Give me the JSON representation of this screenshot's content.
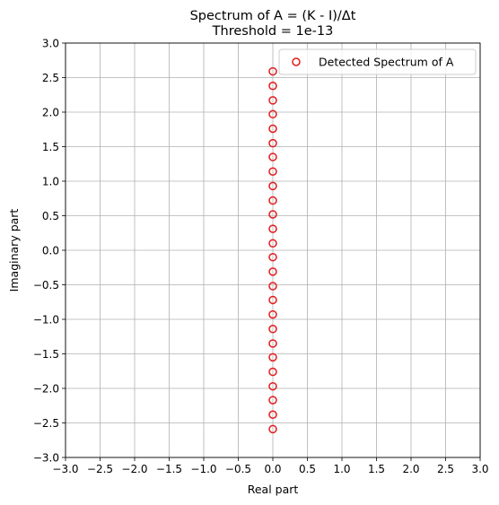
{
  "chart_data": {
    "type": "scatter",
    "title": "Spectrum of A = (K - I)/Δt",
    "subtitle": "Threshold = 1e-13",
    "xlabel": "Real part",
    "ylabel": "Imaginary part",
    "xlim": [
      -3.0,
      3.0
    ],
    "ylim": [
      -3.0,
      3.0
    ],
    "xticks": [
      "−3.0",
      "−2.5",
      "−2.0",
      "−1.5",
      "−1.0",
      "−0.5",
      "0.0",
      "0.5",
      "1.0",
      "1.5",
      "2.0",
      "2.5",
      "3.0"
    ],
    "yticks": [
      "−3.0",
      "−2.5",
      "−2.0",
      "−1.5",
      "−1.0",
      "−0.5",
      "0.0",
      "0.5",
      "1.0",
      "1.5",
      "2.0",
      "2.5",
      "3.0"
    ],
    "grid": true,
    "legend_position": "top-right",
    "series": [
      {
        "name": "Detected Spectrum of A",
        "color": "#e31a1c",
        "marker": "open-circle",
        "points": [
          {
            "x": 0.0,
            "y": 2.59
          },
          {
            "x": 0.0,
            "y": 2.38
          },
          {
            "x": 0.0,
            "y": 2.17
          },
          {
            "x": 0.0,
            "y": 1.97
          },
          {
            "x": 0.0,
            "y": 1.76
          },
          {
            "x": 0.0,
            "y": 1.55
          },
          {
            "x": 0.0,
            "y": 1.35
          },
          {
            "x": 0.0,
            "y": 1.14
          },
          {
            "x": 0.0,
            "y": 0.93
          },
          {
            "x": 0.0,
            "y": 0.72
          },
          {
            "x": 0.0,
            "y": 0.52
          },
          {
            "x": 0.0,
            "y": 0.31
          },
          {
            "x": 0.0,
            "y": 0.1
          },
          {
            "x": 0.0,
            "y": -0.1
          },
          {
            "x": 0.0,
            "y": -0.31
          },
          {
            "x": 0.0,
            "y": -0.52
          },
          {
            "x": 0.0,
            "y": -0.72
          },
          {
            "x": 0.0,
            "y": -0.93
          },
          {
            "x": 0.0,
            "y": -1.14
          },
          {
            "x": 0.0,
            "y": -1.35
          },
          {
            "x": 0.0,
            "y": -1.55
          },
          {
            "x": 0.0,
            "y": -1.76
          },
          {
            "x": 0.0,
            "y": -1.97
          },
          {
            "x": 0.0,
            "y": -2.17
          },
          {
            "x": 0.0,
            "y": -2.38
          },
          {
            "x": 0.0,
            "y": -2.59
          }
        ]
      }
    ]
  }
}
